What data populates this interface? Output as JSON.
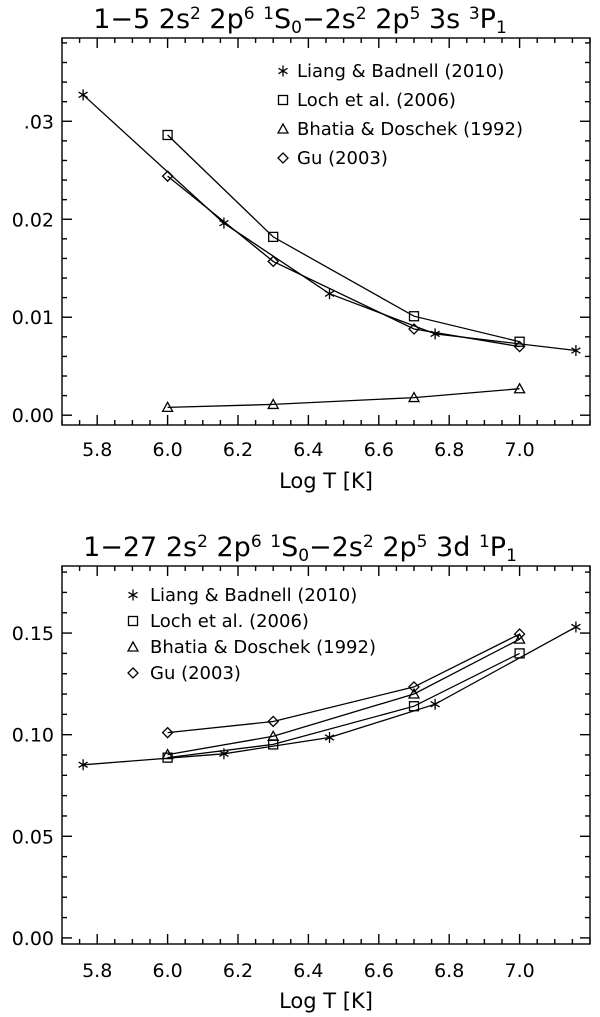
{
  "chart_data": [
    {
      "type": "line",
      "title": {
        "parts": [
          {
            "t": "1−5 2s"
          },
          {
            "t": "2",
            "s": "sup"
          },
          {
            "t": " 2p"
          },
          {
            "t": "6",
            "s": "sup"
          },
          {
            "t": " "
          },
          {
            "t": "1",
            "s": "sup"
          },
          {
            "t": "S"
          },
          {
            "t": "0",
            "s": "sub"
          },
          {
            "t": "−2s"
          },
          {
            "t": "2",
            "s": "sup"
          },
          {
            "t": " 2p"
          },
          {
            "t": "5",
            "s": "sup"
          },
          {
            "t": " 3s "
          },
          {
            "t": "3",
            "s": "sup"
          },
          {
            "t": "P"
          },
          {
            "t": "1",
            "s": "sub"
          }
        ]
      },
      "xlabel": "Log T [K]",
      "ylabel": "",
      "xlim": [
        5.7,
        7.2
      ],
      "ylim": [
        -0.001,
        0.0385
      ],
      "xticks": [
        {
          "v": 5.8,
          "label": "5.8"
        },
        {
          "v": 6.0,
          "label": "6.0"
        },
        {
          "v": 6.2,
          "label": "6.2"
        },
        {
          "v": 6.4,
          "label": "6.4"
        },
        {
          "v": 6.6,
          "label": "6.6"
        },
        {
          "v": 6.8,
          "label": "6.8"
        },
        {
          "v": 7.0,
          "label": "7.0"
        }
      ],
      "yticks": [
        {
          "v": 0.0,
          "label": "0.00"
        },
        {
          "v": 0.01,
          "label": "0.01"
        },
        {
          "v": 0.02,
          "label": "0.02"
        },
        {
          "v": 0.03,
          "label": ".03"
        }
      ],
      "legend_position": "top-right",
      "series": [
        {
          "name": "Liang & Badnell (2010)",
          "marker": "asterisk",
          "x": [
            5.76,
            6.16,
            6.46,
            6.76,
            7.16
          ],
          "y": [
            0.0327,
            0.0196,
            0.0124,
            0.0083,
            0.0066
          ]
        },
        {
          "name": "Loch et al. (2006)",
          "marker": "square",
          "x": [
            6.0,
            6.3,
            6.7,
            7.0
          ],
          "y": [
            0.0286,
            0.0182,
            0.0101,
            0.0075
          ]
        },
        {
          "name": "Bhatia & Doschek (1992)",
          "marker": "triangle",
          "x": [
            6.0,
            6.3,
            6.7,
            7.0
          ],
          "y": [
            0.0008,
            0.0011,
            0.0018,
            0.0027
          ]
        },
        {
          "name": "Gu (2003)",
          "marker": "diamond",
          "x": [
            6.0,
            6.3,
            6.7,
            7.0
          ],
          "y": [
            0.0244,
            0.0157,
            0.0088,
            0.007
          ]
        }
      ]
    },
    {
      "type": "line",
      "title": {
        "parts": [
          {
            "t": "1−27 2s"
          },
          {
            "t": "2",
            "s": "sup"
          },
          {
            "t": " 2p"
          },
          {
            "t": "6",
            "s": "sup"
          },
          {
            "t": " "
          },
          {
            "t": "1",
            "s": "sup"
          },
          {
            "t": "S"
          },
          {
            "t": "0",
            "s": "sub"
          },
          {
            "t": "−2s"
          },
          {
            "t": "2",
            "s": "sup"
          },
          {
            "t": " 2p"
          },
          {
            "t": "5",
            "s": "sup"
          },
          {
            "t": " 3d "
          },
          {
            "t": "1",
            "s": "sup"
          },
          {
            "t": "P"
          },
          {
            "t": "1",
            "s": "sub"
          }
        ]
      },
      "xlabel": "Log T [K]",
      "ylabel": "",
      "xlim": [
        5.7,
        7.2
      ],
      "ylim": [
        -0.003,
        0.183
      ],
      "xticks": [
        {
          "v": 5.8,
          "label": "5.8"
        },
        {
          "v": 6.0,
          "label": "6.0"
        },
        {
          "v": 6.2,
          "label": "6.2"
        },
        {
          "v": 6.4,
          "label": "6.4"
        },
        {
          "v": 6.6,
          "label": "6.6"
        },
        {
          "v": 6.8,
          "label": "6.8"
        },
        {
          "v": 7.0,
          "label": "7.0"
        }
      ],
      "yticks": [
        {
          "v": 0.0,
          "label": "0.00"
        },
        {
          "v": 0.05,
          "label": "0.05"
        },
        {
          "v": 0.1,
          "label": "0.10"
        },
        {
          "v": 0.15,
          "label": "0.15"
        }
      ],
      "legend_position": "top-left",
      "series": [
        {
          "name": "Liang & Badnell (2010)",
          "marker": "asterisk",
          "x": [
            5.76,
            6.16,
            6.46,
            6.76,
            7.16
          ],
          "y": [
            0.0852,
            0.0906,
            0.0986,
            0.115,
            0.153
          ]
        },
        {
          "name": "Loch et al. (2006)",
          "marker": "square",
          "x": [
            6.0,
            6.3,
            6.7,
            7.0
          ],
          "y": [
            0.0887,
            0.0952,
            0.114,
            0.14
          ]
        },
        {
          "name": "Bhatia & Doschek (1992)",
          "marker": "triangle",
          "x": [
            6.0,
            6.3,
            6.7,
            7.0
          ],
          "y": [
            0.0902,
            0.0992,
            0.12,
            0.147
          ]
        },
        {
          "name": "Gu (2003)",
          "marker": "diamond",
          "x": [
            6.0,
            6.3,
            6.7,
            7.0
          ],
          "y": [
            0.101,
            0.1065,
            0.1235,
            0.1495
          ]
        }
      ]
    }
  ]
}
